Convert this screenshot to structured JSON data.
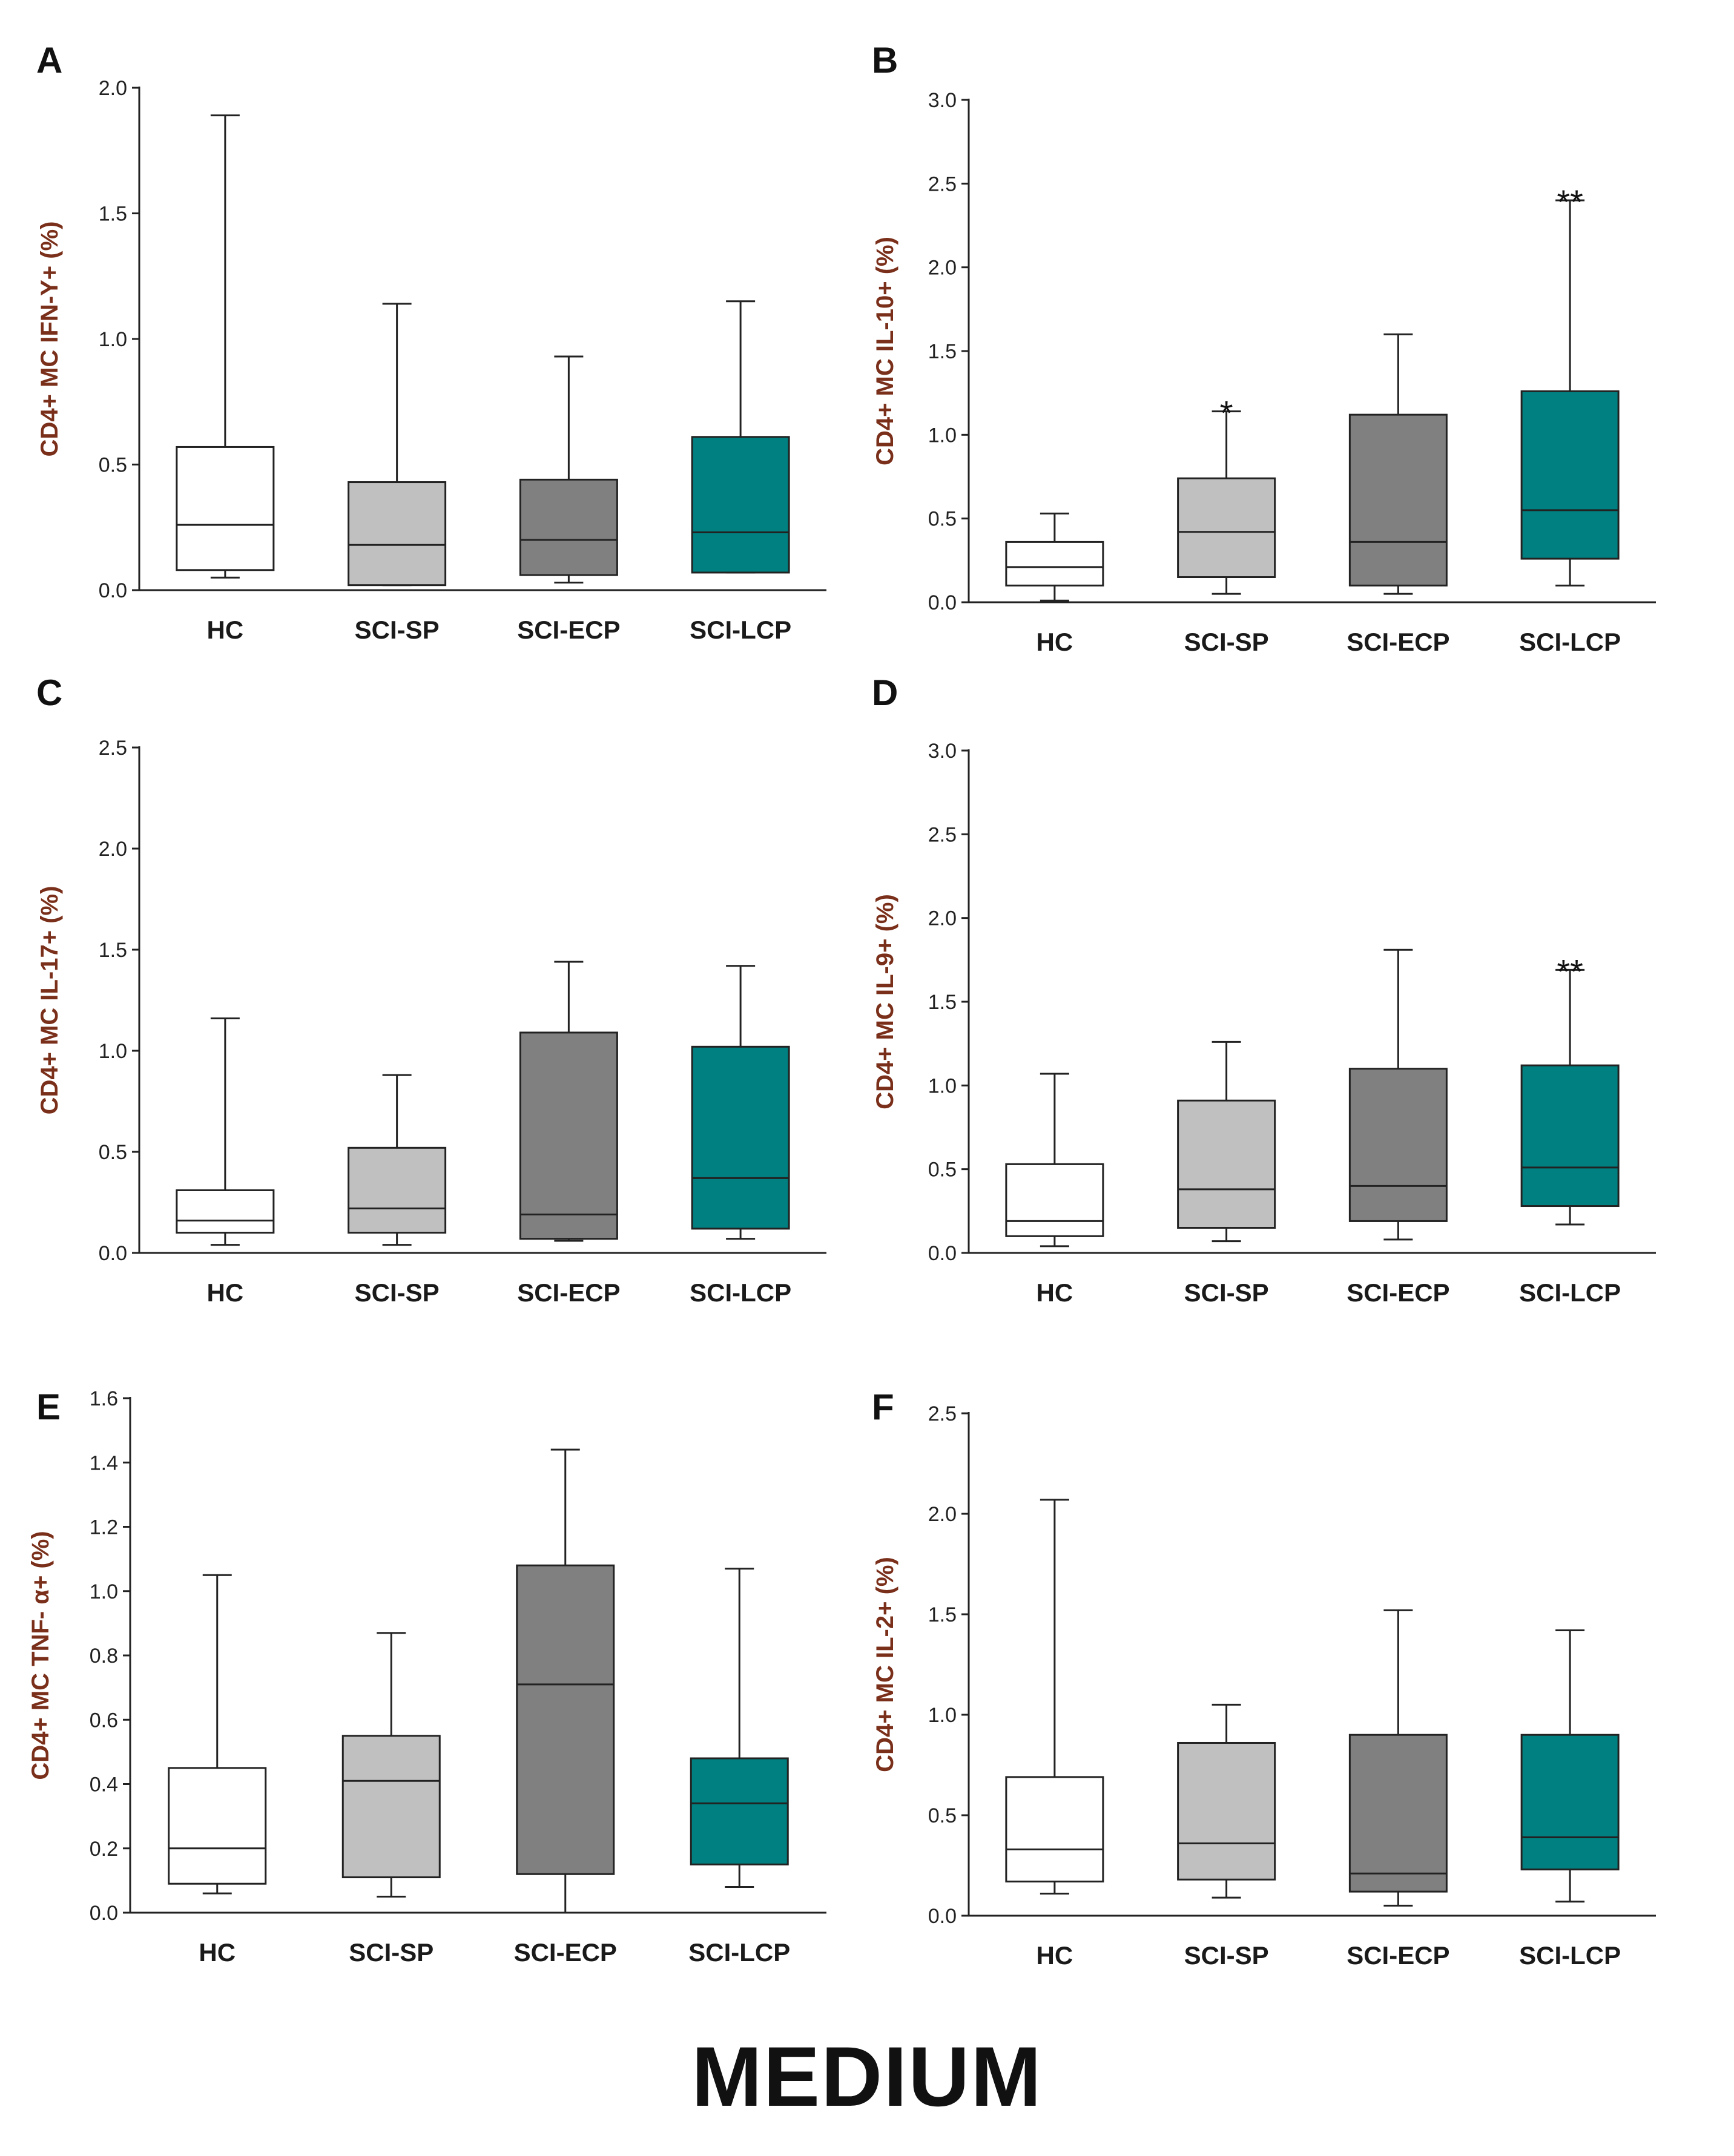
{
  "footer_label": "MEDIUM",
  "colors": {
    "HC": "#ffffff",
    "SCI-SP": "#c0c0c0",
    "SCI-ECP": "#808080",
    "SCI-LCP": "#008080",
    "stroke": "#222222",
    "axis_label": "#7a2f1a"
  },
  "chart_data": [
    {
      "panel": "A",
      "type": "box",
      "ylabel": "CD4+ MC IFN-Y+ (%)",
      "ylim": [
        0,
        2.0
      ],
      "yticks": [
        "0.0",
        "0.5",
        "1.0",
        "1.5",
        "2.0"
      ],
      "categories": [
        "HC",
        "SCI-SP",
        "SCI-ECP",
        "SCI-LCP"
      ],
      "boxes": [
        {
          "min": 0.05,
          "q1": 0.08,
          "median": 0.26,
          "q3": 0.57,
          "max": 1.89,
          "sig": ""
        },
        {
          "min": 0.02,
          "q1": 0.02,
          "median": 0.18,
          "q3": 0.43,
          "max": 1.14,
          "sig": ""
        },
        {
          "min": 0.03,
          "q1": 0.06,
          "median": 0.2,
          "q3": 0.44,
          "max": 0.93,
          "sig": ""
        },
        {
          "min": 0.07,
          "q1": 0.07,
          "median": 0.23,
          "q3": 0.61,
          "max": 1.15,
          "sig": ""
        }
      ]
    },
    {
      "panel": "B",
      "type": "box",
      "ylabel": "CD4+ MC IL-10+ (%)",
      "ylim": [
        0,
        3.0
      ],
      "yticks": [
        "0.0",
        "0.5",
        "1.0",
        "1.5",
        "2.0",
        "2.5",
        "3.0"
      ],
      "categories": [
        "HC",
        "SCI-SP",
        "SCI-ECP",
        "SCI-LCP"
      ],
      "boxes": [
        {
          "min": 0.01,
          "q1": 0.1,
          "median": 0.21,
          "q3": 0.36,
          "max": 0.53,
          "sig": ""
        },
        {
          "min": 0.05,
          "q1": 0.15,
          "median": 0.42,
          "q3": 0.74,
          "max": 1.14,
          "sig": "*"
        },
        {
          "min": 0.05,
          "q1": 0.1,
          "median": 0.36,
          "q3": 1.12,
          "max": 1.6,
          "sig": ""
        },
        {
          "min": 0.1,
          "q1": 0.26,
          "median": 0.55,
          "q3": 1.26,
          "max": 2.4,
          "sig": "**"
        }
      ]
    },
    {
      "panel": "C",
      "type": "box",
      "ylabel": "CD4+ MC IL-17+ (%)",
      "ylim": [
        0,
        2.5
      ],
      "yticks": [
        "0.0",
        "0.5",
        "1.0",
        "1.5",
        "2.0",
        "2.5"
      ],
      "categories": [
        "HC",
        "SCI-SP",
        "SCI-ECP",
        "SCI-LCP"
      ],
      "boxes": [
        {
          "min": 0.04,
          "q1": 0.1,
          "median": 0.16,
          "q3": 0.31,
          "max": 1.16,
          "sig": ""
        },
        {
          "min": 0.04,
          "q1": 0.1,
          "median": 0.22,
          "q3": 0.52,
          "max": 0.88,
          "sig": ""
        },
        {
          "min": 0.06,
          "q1": 0.07,
          "median": 0.19,
          "q3": 1.09,
          "max": 1.44,
          "sig": ""
        },
        {
          "min": 0.07,
          "q1": 0.12,
          "median": 0.37,
          "q3": 1.02,
          "max": 1.42,
          "sig": ""
        }
      ]
    },
    {
      "panel": "D",
      "type": "box",
      "ylabel": "CD4+ MC IL-9+ (%)",
      "ylim": [
        0,
        3.0
      ],
      "yticks": [
        "0.0",
        "0.5",
        "1.0",
        "1.5",
        "2.0",
        "2.5",
        "3.0"
      ],
      "categories": [
        "HC",
        "SCI-SP",
        "SCI-ECP",
        "SCI-LCP"
      ],
      "boxes": [
        {
          "min": 0.04,
          "q1": 0.1,
          "median": 0.19,
          "q3": 0.53,
          "max": 1.07,
          "sig": ""
        },
        {
          "min": 0.07,
          "q1": 0.15,
          "median": 0.38,
          "q3": 0.91,
          "max": 1.26,
          "sig": ""
        },
        {
          "min": 0.08,
          "q1": 0.19,
          "median": 0.4,
          "q3": 1.1,
          "max": 1.81,
          "sig": ""
        },
        {
          "min": 0.17,
          "q1": 0.28,
          "median": 0.51,
          "q3": 1.12,
          "max": 1.69,
          "sig": "**"
        }
      ]
    },
    {
      "panel": "E",
      "type": "box",
      "ylabel": "CD4+ MC TNF- α+ (%)",
      "ylim": [
        0,
        1.6
      ],
      "yticks": [
        "0.0",
        "0.2",
        "0.4",
        "0.6",
        "0.8",
        "1.0",
        "1.2",
        "1.4",
        "1.6"
      ],
      "categories": [
        "HC",
        "SCI-SP",
        "SCI-ECP",
        "SCI-LCP"
      ],
      "boxes": [
        {
          "min": 0.06,
          "q1": 0.09,
          "median": 0.2,
          "q3": 0.45,
          "max": 1.05,
          "sig": ""
        },
        {
          "min": 0.05,
          "q1": 0.11,
          "median": 0.41,
          "q3": 0.55,
          "max": 0.87,
          "sig": ""
        },
        {
          "min": 0.0,
          "q1": 0.12,
          "median": 0.71,
          "q3": 1.08,
          "max": 1.44,
          "sig": ""
        },
        {
          "min": 0.08,
          "q1": 0.15,
          "median": 0.34,
          "q3": 0.48,
          "max": 1.07,
          "sig": ""
        }
      ]
    },
    {
      "panel": "F",
      "type": "box",
      "ylabel": "CD4+ MC IL-2+ (%)",
      "ylim": [
        0,
        2.5
      ],
      "yticks": [
        "0.0",
        "0.5",
        "1.0",
        "1.5",
        "2.0",
        "2.5"
      ],
      "categories": [
        "HC",
        "SCI-SP",
        "SCI-ECP",
        "SCI-LCP"
      ],
      "boxes": [
        {
          "min": 0.11,
          "q1": 0.17,
          "median": 0.33,
          "q3": 0.69,
          "max": 2.07,
          "sig": ""
        },
        {
          "min": 0.09,
          "q1": 0.18,
          "median": 0.36,
          "q3": 0.86,
          "max": 1.05,
          "sig": ""
        },
        {
          "min": 0.05,
          "q1": 0.12,
          "median": 0.21,
          "q3": 0.9,
          "max": 1.52,
          "sig": ""
        },
        {
          "min": 0.07,
          "q1": 0.23,
          "median": 0.39,
          "q3": 0.9,
          "max": 1.42,
          "sig": ""
        }
      ]
    }
  ]
}
